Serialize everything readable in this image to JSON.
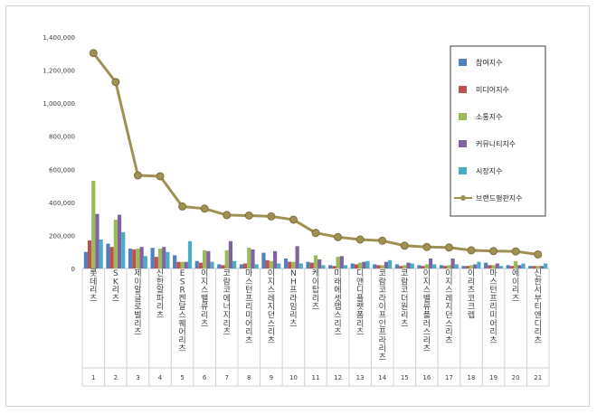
{
  "chart_data": {
    "type": "bar",
    "title": "",
    "xlabel": "",
    "ylabel": "",
    "ylim": [
      0,
      1400000
    ],
    "yticks": [
      0,
      200000,
      400000,
      600000,
      800000,
      1000000,
      1200000,
      1400000
    ],
    "ytick_labels": [
      "0",
      "200,000",
      "400,000",
      "600,000",
      "800,000",
      "1,000,000",
      "1,200,000",
      "1,400,000"
    ],
    "categories": [
      "롯데리츠",
      "SK리츠",
      "제이알글로벌리츠",
      "신한알파리츠",
      "ESR켄달스퀘어리츠",
      "이지스밸류리츠",
      "코람코에너지리츠",
      "마스턴프리미어리츠",
      "이지스레지던스리츠",
      "NH프라임리츠",
      "케이탑리츠",
      "미래에셋맵스리츠",
      "디앤디플랫폼리츠",
      "코람코라이프인프라리츠",
      "코람코더원리츠",
      "이지스밸류플러스리츠",
      "이지스레지던스리츠",
      "이리츠코크렙",
      "마스턴프리미어리츠",
      "에이리츠",
      "신한서부티엔디리츠"
    ],
    "index_labels": [
      "1",
      "2",
      "3",
      "4",
      "5",
      "6",
      "7",
      "8",
      "9",
      "10",
      "11",
      "12",
      "13",
      "14",
      "15",
      "16",
      "17",
      "18",
      "19",
      "20",
      "21"
    ],
    "grid": false,
    "legend_position": "right",
    "series": [
      {
        "name": "참여지수",
        "type": "bar",
        "color": "#4f81bd",
        "values": [
          100000,
          150000,
          120000,
          125000,
          80000,
          45000,
          25000,
          25000,
          95000,
          60000,
          40000,
          20000,
          30000,
          25000,
          25000,
          20000,
          20000,
          15000,
          35000,
          20000,
          15000
        ]
      },
      {
        "name": "미디어지수",
        "type": "bar",
        "color": "#c0504d",
        "values": [
          170000,
          130000,
          115000,
          70000,
          40000,
          35000,
          20000,
          30000,
          50000,
          40000,
          35000,
          15000,
          25000,
          20000,
          15000,
          15000,
          15000,
          15000,
          20000,
          15000,
          15000
        ]
      },
      {
        "name": "소통지수",
        "type": "bar",
        "color": "#9bbb59",
        "values": [
          530000,
          295000,
          120000,
          120000,
          40000,
          110000,
          110000,
          125000,
          45000,
          40000,
          80000,
          70000,
          35000,
          20000,
          20000,
          25000,
          20000,
          20000,
          20000,
          45000,
          15000
        ]
      },
      {
        "name": "커뮤니티지수",
        "type": "bar",
        "color": "#8064a2",
        "values": [
          330000,
          325000,
          130000,
          130000,
          40000,
          105000,
          165000,
          115000,
          105000,
          135000,
          55000,
          75000,
          40000,
          40000,
          35000,
          60000,
          60000,
          25000,
          30000,
          20000,
          15000
        ]
      },
      {
        "name": "시장지수",
        "type": "bar",
        "color": "#4bacc6",
        "values": [
          175000,
          220000,
          75000,
          100000,
          165000,
          40000,
          45000,
          25000,
          30000,
          30000,
          20000,
          20000,
          45000,
          50000,
          30000,
          25000,
          25000,
          40000,
          15000,
          30000,
          30000
        ]
      },
      {
        "name": "브랜드평판지수",
        "type": "line",
        "color": "#a09052",
        "values": [
          1303000,
          1128000,
          563000,
          558000,
          375000,
          362000,
          323000,
          320000,
          315000,
          295000,
          215000,
          190000,
          175000,
          168000,
          138000,
          130000,
          127000,
          110000,
          105000,
          103000,
          85000
        ]
      }
    ]
  }
}
